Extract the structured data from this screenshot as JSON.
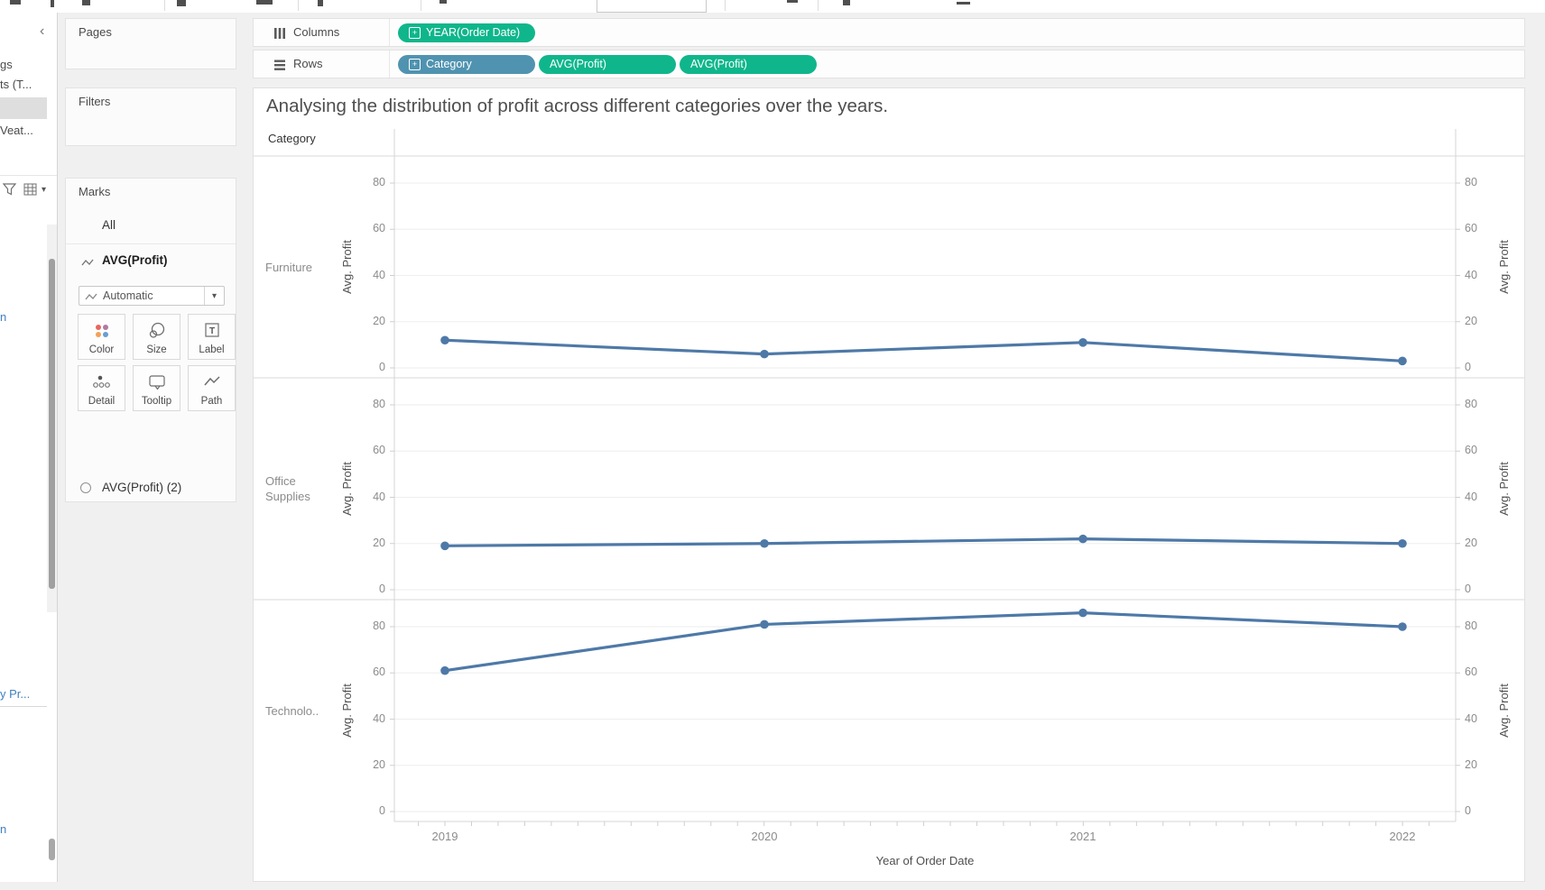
{
  "left_panel": {
    "collapse_chevron": "‹",
    "fragment_1": "gs",
    "fragment_2": "ts (T...",
    "fragment_3": "Veat...",
    "fragment_4": "n",
    "fragment_5": "y Pr...",
    "fragment_6": "n"
  },
  "cards": {
    "pages": {
      "title": "Pages"
    },
    "filters": {
      "title": "Filters"
    },
    "marks": {
      "title": "Marks",
      "item_all": "All",
      "item_avg_profit": "AVG(Profit)",
      "item_avg_profit_2": "AVG(Profit) (2)",
      "mark_type_dropdown": "Automatic",
      "buttons": [
        {
          "label": "Color"
        },
        {
          "label": "Size"
        },
        {
          "label": "Label"
        },
        {
          "label": "Detail"
        },
        {
          "label": "Tooltip"
        },
        {
          "label": "Path"
        }
      ]
    }
  },
  "shelves": {
    "columns": {
      "label": "Columns",
      "pills": [
        {
          "label": "YEAR(Order Date)",
          "color": "#0fb68b",
          "kind": "dimension-date"
        }
      ]
    },
    "rows": {
      "label": "Rows",
      "pills": [
        {
          "label": "Category",
          "color": "#5093b0",
          "kind": "dimension"
        },
        {
          "label": "AVG(Profit)",
          "color": "#0fb68b",
          "kind": "measure"
        },
        {
          "label": "AVG(Profit)",
          "color": "#0fb68b",
          "kind": "measure"
        }
      ]
    }
  },
  "sheet": {
    "title": "Analysing the distribution of profit across different categories over the years.",
    "row_header": "Category"
  },
  "chart_data": {
    "type": "line",
    "title": "Analysing the distribution of profit across different categories over the years.",
    "x": [
      2019,
      2020,
      2021,
      2022
    ],
    "xlabel": "Year of Order Date",
    "ylabel": "Avg. Profit",
    "row_field": "Category",
    "row_display": [
      "Furniture",
      "Office\nSupplies",
      "Technolo.."
    ],
    "series": [
      {
        "name": "Furniture",
        "values": [
          12,
          6,
          11,
          3
        ]
      },
      {
        "name": "Office Supplies",
        "values": [
          19,
          20,
          22,
          20
        ]
      },
      {
        "name": "Technology",
        "values": [
          61,
          81,
          86,
          80
        ]
      }
    ],
    "yticks": [
      0,
      20,
      40,
      60,
      80
    ],
    "ylim": [
      -4,
      96
    ],
    "grid": true,
    "dual_axis": true,
    "legend": "none",
    "line_color": "#4e79a7"
  }
}
